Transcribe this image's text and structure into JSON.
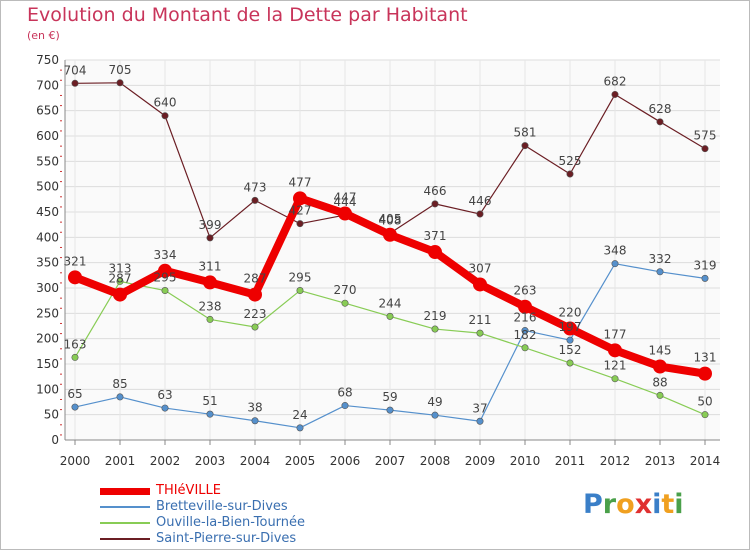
{
  "header": {
    "title": "Evolution du Montant de la Dette par Habitant",
    "subtitle": "(en €)"
  },
  "logo": {
    "text": "Proxiti",
    "colors": [
      "#3a7fc8",
      "#4aa04a",
      "#f0a020",
      "#e03030",
      "#3a7fc8",
      "#f0a020",
      "#4aa04a"
    ]
  },
  "chart_data": {
    "type": "line",
    "title": "Evolution du Montant de la Dette par Habitant",
    "subtitle": "(en €)",
    "ylim": [
      0,
      750
    ],
    "yticks": [
      0,
      50,
      100,
      150,
      200,
      250,
      300,
      350,
      400,
      450,
      500,
      550,
      600,
      650,
      700,
      750
    ],
    "grid": true,
    "legend_position": "bottom-left",
    "x": [
      "2000",
      "2001",
      "2002",
      "2003",
      "2004",
      "2005",
      "2006",
      "2007",
      "2008",
      "2009",
      "2010",
      "2011",
      "2012",
      "2013",
      "2014"
    ],
    "series": [
      {
        "name": "THIéVILLE",
        "color": "#ee0000",
        "values": [
          321,
          287,
          334,
          311,
          287,
          477,
          447,
          405,
          371,
          307,
          263,
          220,
          177,
          145,
          131
        ],
        "labels": [
          "321",
          "287",
          "334",
          "311",
          "287",
          "477",
          "447",
          "405",
          "371",
          "307",
          "263",
          "220",
          "177",
          "145",
          "131"
        ]
      },
      {
        "name": "Bretteville-sur-Dives",
        "color": "#5590cc",
        "values": [
          65,
          85,
          63,
          51,
          38,
          24,
          68,
          59,
          49,
          37,
          216,
          197,
          348,
          332,
          319
        ],
        "labels": [
          "65",
          "85",
          "63",
          "51",
          "38",
          "24",
          "68",
          "59",
          "49",
          "37",
          "216",
          "197",
          "348",
          "332",
          "319"
        ]
      },
      {
        "name": "Ouville-la-Bien-Tournée",
        "color": "#88cc55",
        "values": [
          163,
          313,
          295,
          238,
          223,
          295,
          270,
          244,
          219,
          211,
          182,
          152,
          121,
          88,
          50
        ],
        "labels": [
          "163",
          "313",
          "295",
          "238",
          "223",
          "295",
          "270",
          "244",
          "219",
          "211",
          "182",
          "152",
          "121",
          "88",
          "50"
        ]
      },
      {
        "name": "Saint-Pierre-sur-Dives",
        "color": "#6b1e24",
        "values": [
          704,
          705,
          640,
          399,
          473,
          427,
          444,
          408,
          466,
          446,
          581,
          525,
          682,
          628,
          575
        ],
        "labels": [
          "704",
          "705",
          "640",
          "399",
          "473",
          "427",
          "444",
          "408",
          "466",
          "446",
          "581",
          "525",
          "682",
          "628",
          "575"
        ]
      }
    ]
  }
}
